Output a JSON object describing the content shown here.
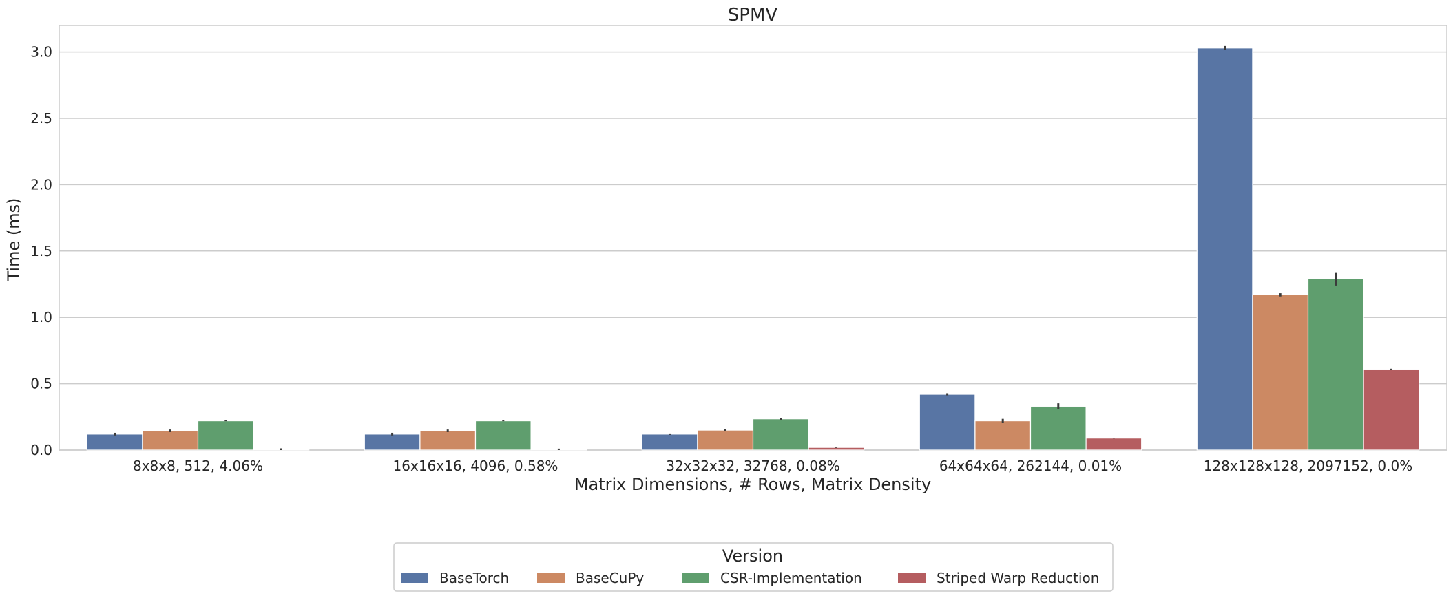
{
  "chart_data": {
    "type": "bar",
    "title": "SPMV",
    "xlabel": "Matrix Dimensions, # Rows, Matrix Density",
    "ylabel": "Time (ms)",
    "ylim": [
      0,
      3.2
    ],
    "yticks": [
      "0.0",
      "0.5",
      "1.0",
      "1.5",
      "2.0",
      "2.5",
      "3.0"
    ],
    "grid": true,
    "legend_position": "bottom-center",
    "legend_title": "Version",
    "categories": [
      "8x8x8, 512, 4.06%",
      "16x16x16, 4096, 0.58%",
      "32x32x32, 32768, 0.08%",
      "64x64x64, 262144, 0.01%",
      "128x128x128, 2097152, 0.0%"
    ],
    "series": [
      {
        "name": "BaseTorch",
        "color": "#5875a4",
        "values": [
          0.12,
          0.12,
          0.12,
          0.42,
          3.03
        ],
        "error": [
          0.01,
          0.01,
          0.005,
          0.008,
          0.015
        ]
      },
      {
        "name": "BaseCuPy",
        "color": "#cc8963",
        "values": [
          0.145,
          0.145,
          0.15,
          0.22,
          1.17
        ],
        "error": [
          0.01,
          0.01,
          0.01,
          0.015,
          0.012
        ]
      },
      {
        "name": "CSR-Implementation",
        "color": "#5f9e6e",
        "values": [
          0.22,
          0.22,
          0.235,
          0.33,
          1.29
        ],
        "error": [
          0.003,
          0.003,
          0.008,
          0.022,
          0.05
        ]
      },
      {
        "name": "Striped Warp Reduction",
        "color": "#b55d60",
        "values": [
          0.003,
          0.003,
          0.02,
          0.09,
          0.61
        ],
        "error": [
          0.01,
          0.008,
          0.003,
          0.003,
          0.003
        ]
      }
    ]
  }
}
